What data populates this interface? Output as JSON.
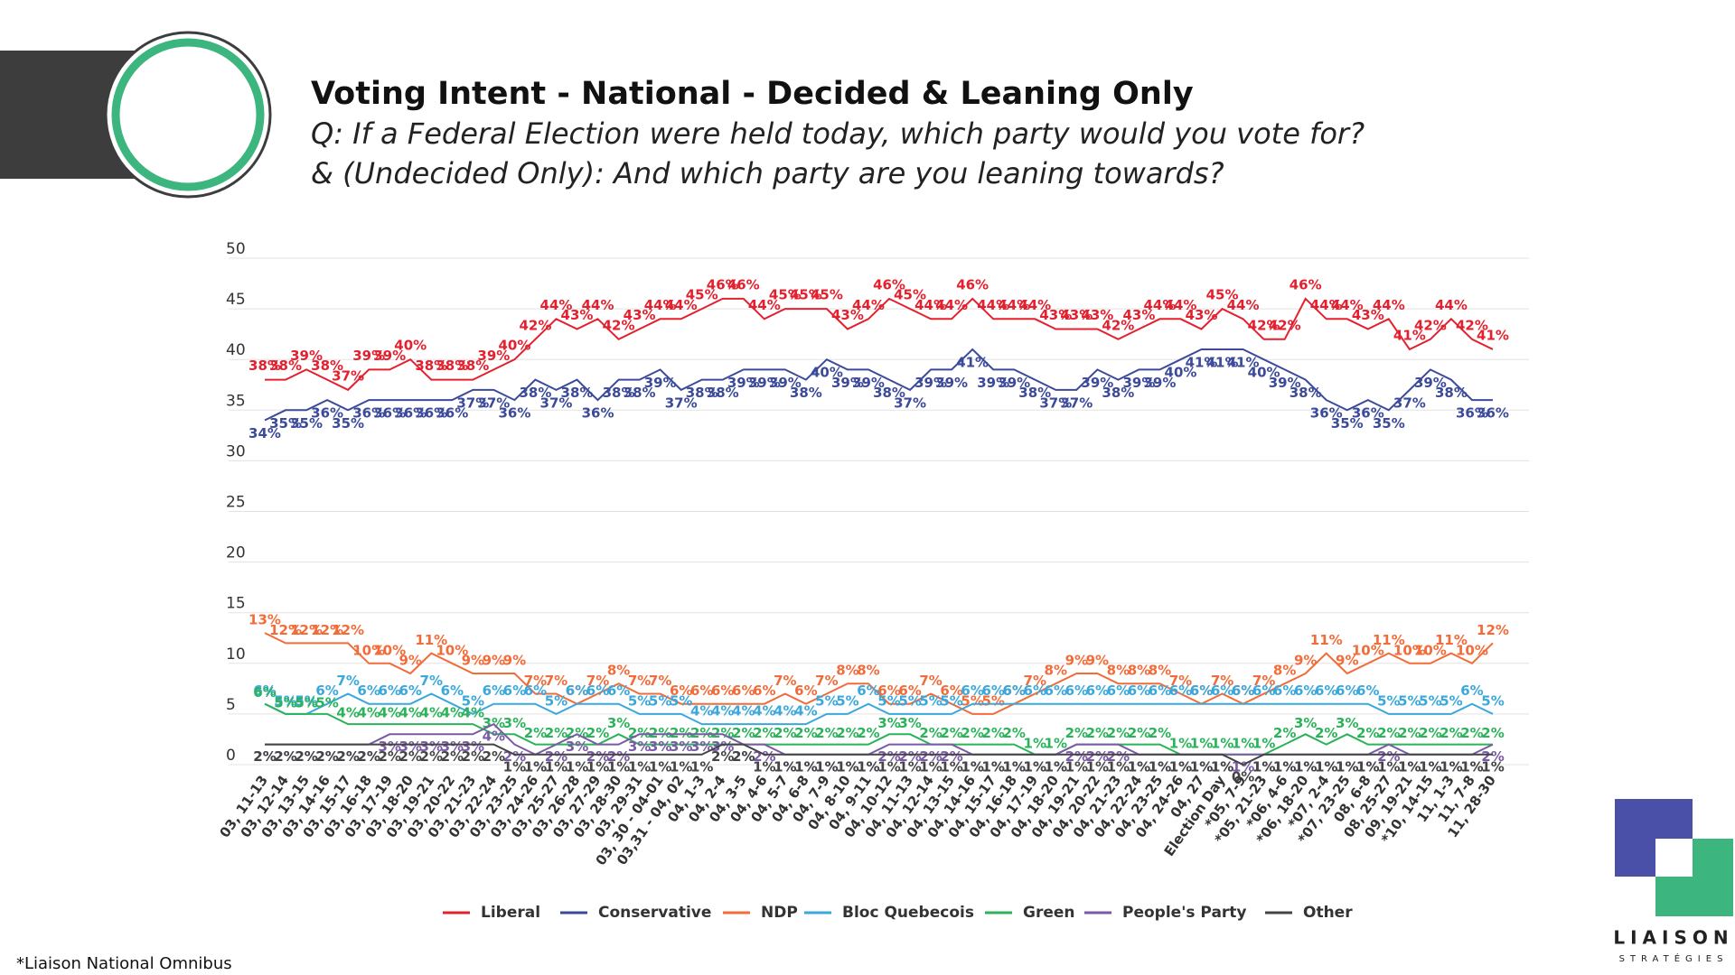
{
  "chart_data": {
    "type": "line",
    "title": "Voting Intent - National - Decided & Leaning Only",
    "subtitle": [
      "Q: If a Federal Election were held today, which party would you vote for?",
      "& (Undecided Only): And which party are you leaning towards?"
    ],
    "footnote": "*Liaison National Omnibus",
    "logo": {
      "name": "LIAISON",
      "tagline": "STRATÉGIES"
    },
    "categories": [
      "03, 11-13",
      "03, 12-14",
      "03, 13-15",
      "03, 14-16",
      "03, 15-17",
      "03, 16-18",
      "03, 17-19",
      "03, 18-20",
      "03, 19-21",
      "03, 20-22",
      "03, 21-23",
      "03, 22-24",
      "03, 23-25",
      "03, 24-26",
      "03, 25-27",
      "03, 26-28",
      "03, 27-29",
      "03, 28-30",
      "03, 29-31",
      "03, 30 - 04-01",
      "03,31 - 04, 02",
      "04, 1-3",
      "04, 2-4",
      "04, 3-5",
      "04, 4-6",
      "04, 5-7",
      "04, 6-8",
      "04, 7-9",
      "04, 8-10",
      "04, 9-11",
      "04, 10-12",
      "04, 11-13",
      "04, 12-14",
      "04, 13-15",
      "04, 14-16",
      "04, 15-17",
      "04, 16-18",
      "04, 17-19",
      "04, 18-20",
      "04, 19-21",
      "04, 20-22",
      "04, 21-23",
      "04, 22-24",
      "04, 23-25",
      "04, 24-26",
      "04, 27",
      "Election Day",
      "*05, 7-9",
      "*05, 21-23",
      "*06, 4-6",
      "*06, 18-20",
      "*07, 2-4",
      "*07, 23-25",
      "08, 6-8",
      "08, 25-27",
      "09, 19-21",
      "*10, 14-15",
      "11, 1-3",
      "11, 7-8",
      "11, 28-30"
    ],
    "ylim": [
      0,
      50
    ],
    "yticks": [
      0,
      5,
      10,
      15,
      20,
      25,
      30,
      35,
      40,
      45,
      50
    ],
    "grid": true,
    "legend": "bottom",
    "series": [
      {
        "name": "Liberal",
        "color": "#e5202e",
        "values": [
          38,
          38,
          39,
          38,
          37,
          39,
          39,
          40,
          38,
          38,
          38,
          39,
          40,
          42,
          44,
          43,
          44,
          42,
          43,
          44,
          44,
          45,
          46,
          46,
          44,
          45,
          45,
          45,
          43,
          44,
          46,
          45,
          44,
          44,
          46,
          44,
          44,
          44,
          43,
          43,
          43,
          42,
          43,
          44,
          44,
          43,
          45,
          44,
          42,
          42,
          46,
          44,
          44,
          43,
          44,
          41,
          42,
          44,
          42,
          41
        ],
        "value_labels": [
          "38%",
          "38%",
          "39%",
          "38%",
          "37%",
          "39%",
          "39%",
          "40%",
          "38%",
          "38%",
          "38%",
          "39%",
          "40%",
          "42%",
          "44%",
          "43%",
          "44%",
          "42%",
          "43%",
          "44%",
          "44%",
          "45%",
          "46%",
          "46%",
          "44%",
          "45%",
          "45%",
          "45%",
          "43%",
          "44%",
          "46%",
          "45%",
          "44%",
          "44%",
          "46%",
          "44%",
          "44%",
          "44%",
          "43%",
          "43%",
          "43%",
          "42%",
          "43%",
          "44%",
          "44%",
          "43%",
          "45%",
          "44%",
          "42%",
          "42%",
          "46%",
          "44%",
          "44%",
          "43%",
          "44%",
          "41%",
          "42%",
          "44%",
          "42%",
          "41%"
        ]
      },
      {
        "name": "Conservative",
        "color": "#3b4a9a",
        "values": [
          34,
          35,
          35,
          36,
          35,
          36,
          36,
          36,
          36,
          36,
          37,
          37,
          36,
          38,
          37,
          38,
          36,
          38,
          38,
          39,
          37,
          38,
          38,
          39,
          39,
          39,
          38,
          40,
          39,
          39,
          38,
          37,
          39,
          39,
          41,
          39,
          39,
          38,
          37,
          37,
          39,
          38,
          39,
          39,
          40,
          41,
          41,
          41,
          40,
          39,
          38,
          36,
          35,
          36,
          35,
          37,
          39,
          38,
          36,
          36
        ],
        "value_labels": [
          "34%",
          "35%",
          "35%",
          "36%",
          "35%",
          "36%",
          "36%",
          "36%",
          "36%",
          "36%",
          "37%",
          "37%",
          "36%",
          "38%",
          "37%",
          "38%",
          "36%",
          "38%",
          "38%",
          "39%",
          "37%",
          "38%",
          "38%",
          "39%",
          "39%",
          "39%",
          "38%",
          "40%",
          "39%",
          "39%",
          "38%",
          "37%",
          "39%",
          "39%",
          "41%",
          "39%",
          "39%",
          "38%",
          "37%",
          "37%",
          "39%",
          "38%",
          "39%",
          "39%",
          "40%",
          "41%",
          "41%",
          "41%",
          "40%",
          "39%",
          "38%",
          "36%",
          "35%",
          "36%",
          "35%",
          "37%",
          "39%",
          "38%",
          "36%",
          "36%"
        ]
      },
      {
        "name": "NDP",
        "color": "#f26c3a",
        "values": [
          13,
          12,
          12,
          12,
          12,
          10,
          10,
          9,
          11,
          10,
          9,
          9,
          9,
          7,
          7,
          6,
          7,
          8,
          7,
          7,
          6,
          6,
          6,
          6,
          6,
          7,
          6,
          7,
          8,
          8,
          6,
          6,
          7,
          6,
          5,
          5,
          6,
          7,
          8,
          9,
          9,
          8,
          8,
          8,
          7,
          6,
          7,
          6,
          7,
          8,
          9,
          11,
          9,
          10,
          11,
          10,
          10,
          11,
          10,
          12
        ],
        "value_labels": [
          "13%",
          "12%",
          "12%",
          "12%",
          "12%",
          "10%",
          "10%",
          "9%",
          "11%",
          "10%",
          "9%",
          "9%",
          "9%",
          "7%",
          "7%",
          "6%",
          "7%",
          "8%",
          "7%",
          "7%",
          "6%",
          "6%",
          "6%",
          "6%",
          "6%",
          "7%",
          "6%",
          "7%",
          "8%",
          "8%",
          "6%",
          "6%",
          "7%",
          "6%",
          "5%",
          "5%",
          "6%",
          "7%",
          "8%",
          "9%",
          "9%",
          "8%",
          "8%",
          "8%",
          "7%",
          "6%",
          "7%",
          "6%",
          "7%",
          "8%",
          "9%",
          "11%",
          "9%",
          "10%",
          "11%",
          "10%",
          "10%",
          "11%",
          "10%",
          "12%"
        ]
      },
      {
        "name": "Bloc Quebecois",
        "color": "#3aa8dc",
        "values": [
          6,
          5,
          5,
          6,
          7,
          6,
          6,
          6,
          7,
          6,
          5,
          6,
          6,
          6,
          5,
          6,
          6,
          6,
          5,
          5,
          5,
          4,
          4,
          4,
          4,
          4,
          4,
          5,
          5,
          6,
          5,
          5,
          5,
          5,
          6,
          6,
          6,
          6,
          6,
          6,
          6,
          6,
          6,
          6,
          6,
          6,
          6,
          6,
          6,
          6,
          6,
          6,
          6,
          6,
          5,
          5,
          5,
          5,
          6,
          5
        ],
        "value_labels": [
          "6%",
          "5%",
          "5%",
          "6%",
          "7%",
          "6%",
          "6%",
          "6%",
          "7%",
          "6%",
          "5%",
          "6%",
          "6%",
          "6%",
          "5%",
          "6%",
          "6%",
          "6%",
          "5%",
          "5%",
          "5%",
          "4%",
          "4%",
          "4%",
          "4%",
          "4%",
          "4%",
          "5%",
          "5%",
          "6%",
          "5%",
          "5%",
          "5%",
          "5%",
          "6%",
          "6%",
          "6%",
          "6%",
          "6%",
          "6%",
          "6%",
          "6%",
          "6%",
          "6%",
          "6%",
          "6%",
          "6%",
          "6%",
          "6%",
          "6%",
          "6%",
          "6%",
          "6%",
          "6%",
          "5%",
          "5%",
          "5%",
          "5%",
          "6%",
          "5%"
        ]
      },
      {
        "name": "Green",
        "color": "#2bb35a",
        "values": [
          6,
          5,
          5,
          5,
          4,
          4,
          4,
          4,
          4,
          4,
          4,
          3,
          3,
          2,
          2,
          2,
          2,
          3,
          2,
          2,
          2,
          2,
          2,
          2,
          2,
          2,
          2,
          2,
          2,
          2,
          3,
          3,
          2,
          2,
          2,
          2,
          2,
          1,
          1,
          2,
          2,
          2,
          2,
          2,
          1,
          1,
          1,
          1,
          1,
          2,
          3,
          2,
          3,
          2,
          2,
          2,
          2,
          2,
          2,
          2
        ],
        "value_labels": [
          "6%",
          "5%",
          "5%",
          "5%",
          "4%",
          "4%",
          "4%",
          "4%",
          "4%",
          "4%",
          "4%",
          "3%",
          "3%",
          "2%",
          "2%",
          "2%",
          "2%",
          "3%",
          "2%",
          "2%",
          "2%",
          "2%",
          "2%",
          "2%",
          "2%",
          "2%",
          "2%",
          "2%",
          "2%",
          "2%",
          "3%",
          "3%",
          "2%",
          "2%",
          "2%",
          "2%",
          "2%",
          "1%",
          "1%",
          "2%",
          "2%",
          "2%",
          "2%",
          "2%",
          "1%",
          "1%",
          "1%",
          "1%",
          "1%",
          "2%",
          "3%",
          "2%",
          "3%",
          "2%",
          "2%",
          "2%",
          "2%",
          "2%",
          "2%",
          "2%"
        ]
      },
      {
        "name": "People's Party",
        "color": "#7a5aa6",
        "values": [
          2,
          2,
          2,
          2,
          2,
          2,
          3,
          3,
          3,
          3,
          3,
          4,
          2,
          1,
          2,
          3,
          2,
          2,
          3,
          3,
          3,
          3,
          3,
          2,
          2,
          1,
          1,
          1,
          1,
          1,
          2,
          2,
          2,
          2,
          1,
          1,
          1,
          1,
          1,
          2,
          2,
          2,
          1,
          1,
          1,
          1,
          1,
          1,
          1,
          1,
          1,
          1,
          1,
          1,
          2,
          1,
          1,
          1,
          1,
          2
        ],
        "value_labels": [
          "2%",
          "2%",
          "2%",
          "2%",
          "2%",
          "2%",
          "3%",
          "3%",
          "3%",
          "3%",
          "3%",
          "4%",
          "2%",
          "1%",
          "2%",
          "3%",
          "2%",
          "2%",
          "3%",
          "3%",
          "3%",
          "3%",
          "3%",
          "2%",
          "2%",
          "1%",
          "1%",
          "1%",
          "1%",
          "1%",
          "2%",
          "2%",
          "2%",
          "2%",
          "1%",
          "1%",
          "1%",
          "1%",
          "1%",
          "2%",
          "2%",
          "2%",
          "1%",
          "1%",
          "1%",
          "1%",
          "1%",
          "1%",
          "1%",
          "1%",
          "1%",
          "1%",
          "1%",
          "1%",
          "2%",
          "1%",
          "1%",
          "1%",
          "1%",
          "2%"
        ]
      },
      {
        "name": "Other",
        "color": "#444444",
        "values": [
          2,
          2,
          2,
          2,
          2,
          2,
          2,
          2,
          2,
          2,
          2,
          2,
          1,
          1,
          1,
          1,
          1,
          1,
          1,
          1,
          1,
          1,
          2,
          2,
          1,
          1,
          1,
          1,
          1,
          1,
          1,
          1,
          1,
          1,
          1,
          1,
          1,
          1,
          1,
          1,
          1,
          1,
          1,
          1,
          1,
          1,
          1,
          0,
          1,
          1,
          1,
          1,
          1,
          1,
          1,
          1,
          1,
          1,
          1,
          1
        ],
        "value_labels": [
          "2%",
          "2%",
          "2%",
          "2%",
          "2%",
          "2%",
          "2%",
          "2%",
          "2%",
          "2%",
          "2%",
          "2%",
          "1%",
          "1%",
          "1%",
          "1%",
          "1%",
          "1%",
          "1%",
          "1%",
          "1%",
          "1%",
          "2%",
          "2%",
          "1%",
          "1%",
          "1%",
          "1%",
          "1%",
          "1%",
          "1%",
          "1%",
          "1%",
          "1%",
          "1%",
          "1%",
          "1%",
          "1%",
          "1%",
          "1%",
          "1%",
          "1%",
          "1%",
          "1%",
          "1%",
          "1%",
          "1%",
          "0%",
          "1%",
          "1%",
          "1%",
          "1%",
          "1%",
          "1%",
          "1%",
          "1%",
          "1%",
          "1%",
          "1%",
          "1%"
        ]
      }
    ]
  }
}
